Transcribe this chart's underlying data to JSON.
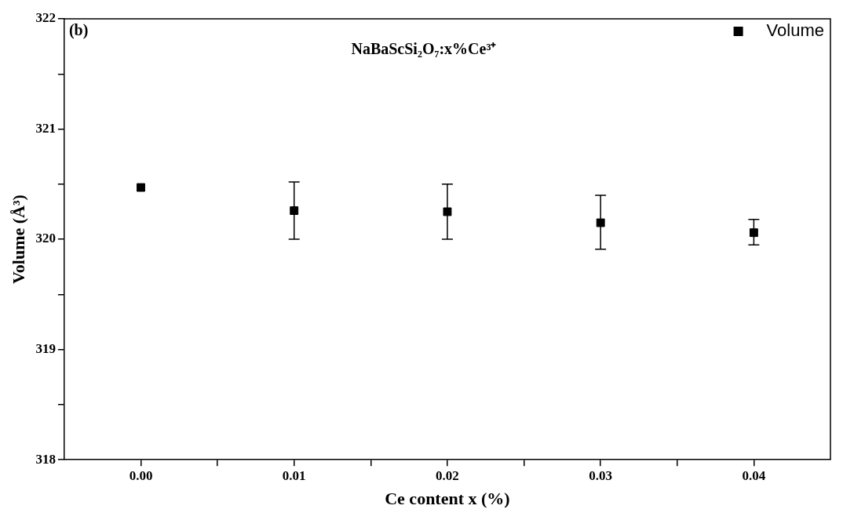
{
  "chart_data": {
    "type": "scatter",
    "title": "NaBaScSi₂O₇:x%Ce³⁺",
    "xlabel": "Ce content x (%)",
    "ylabel": "Volume (Å³)",
    "annotations": [
      "(b)"
    ],
    "x": [
      0,
      0.01,
      0.02,
      0.03,
      0.04
    ],
    "series": [
      {
        "name": "Volume",
        "color": "#000000",
        "values": [
          320.47,
          320.26,
          320.25,
          320.15,
          320.06
        ],
        "errors": [
          null,
          [
            320.0,
            320.52
          ],
          [
            320.0,
            320.5
          ],
          [
            319.91,
            320.4
          ],
          [
            319.95,
            320.18
          ]
        ]
      }
    ],
    "xlim": [
      -0.005,
      0.045
    ],
    "xticks": [
      {
        "value": 0,
        "label": "0.00"
      },
      {
        "value": 0.005,
        "label": null
      },
      {
        "value": 0.01,
        "label": "0.01"
      },
      {
        "value": 0.015,
        "label": null
      },
      {
        "value": 0.02,
        "label": "0.02"
      },
      {
        "value": 0.025,
        "label": null
      },
      {
        "value": 0.03,
        "label": "0.03"
      },
      {
        "value": 0.035,
        "label": null
      },
      {
        "value": 0.04,
        "label": "0.04"
      }
    ],
    "ylim": [
      318,
      322
    ],
    "yticks": [
      318,
      {
        "value": 318.5,
        "label": null
      },
      319,
      {
        "value": 319.5,
        "label": null
      },
      320,
      {
        "value": 320.5,
        "label": null
      },
      321,
      {
        "value": 321.5,
        "label": null
      },
      322
    ],
    "grid": false,
    "legend": "top right",
    "marker": "square"
  }
}
